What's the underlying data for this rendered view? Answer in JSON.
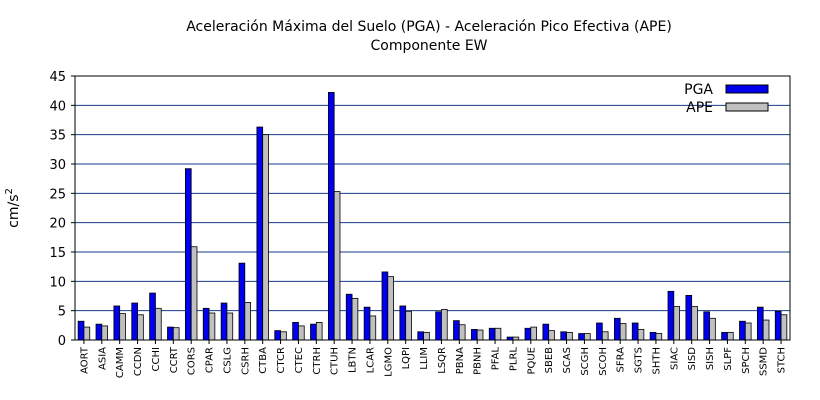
{
  "chart_data": {
    "type": "bar",
    "title": "Aceleración Máxima del Suelo (PGA) -  Aceleración Pico Efectiva (APE)",
    "subtitle": "Componente EW",
    "ylabel_base": "cm/s",
    "ylabel_exp": "2",
    "xlabel": "",
    "ylim": [
      0,
      45
    ],
    "yticks": [
      0,
      5,
      10,
      15,
      20,
      25,
      30,
      35,
      40,
      45
    ],
    "grid": true,
    "legend_position": "top-right",
    "colors": {
      "PGA": "#0000ee",
      "APE": "#c0c0c0",
      "grid": "#1a3a8a"
    },
    "categories": [
      "AORT",
      "ASIA",
      "CAMM",
      "CCDN",
      "CCHI",
      "CCRT",
      "CORS",
      "CPAR",
      "CSLG",
      "CSRH",
      "CTBA",
      "CTCR",
      "CTEC",
      "CTRH",
      "CTUH",
      "LBTN",
      "LCAR",
      "LGMO",
      "LQPI",
      "LLIM",
      "LSQR",
      "PBNA",
      "PBNH",
      "PFAL",
      "PLRL",
      "PQUE",
      "SBEB",
      "SCAS",
      "SCGH",
      "SCOH",
      "SFRA",
      "SGTS",
      "SHTH",
      "SIAC",
      "SISD",
      "SISH",
      "SLPF",
      "SPCH",
      "SSMD",
      "STCH"
    ],
    "series": [
      {
        "name": "PGA",
        "values": [
          3.2,
          2.7,
          5.8,
          6.3,
          8.0,
          2.2,
          29.2,
          5.4,
          6.3,
          13.1,
          36.3,
          1.6,
          3.0,
          2.7,
          42.2,
          7.8,
          5.6,
          11.6,
          5.8,
          1.4,
          4.8,
          3.3,
          1.8,
          2.0,
          0.5,
          2.0,
          2.7,
          1.4,
          1.1,
          2.9,
          3.7,
          2.9,
          1.3,
          8.3,
          7.6,
          4.8,
          1.3,
          3.2,
          5.6,
          4.9
        ]
      },
      {
        "name": "APE",
        "values": [
          2.2,
          2.4,
          4.5,
          4.3,
          5.4,
          2.1,
          15.9,
          4.6,
          4.6,
          6.4,
          35.0,
          1.4,
          2.4,
          3.0,
          25.3,
          7.1,
          4.1,
          10.8,
          4.9,
          1.3,
          5.2,
          2.6,
          1.7,
          2.0,
          0.5,
          2.2,
          1.6,
          1.3,
          1.1,
          1.4,
          2.8,
          1.8,
          1.1,
          5.7,
          5.7,
          3.7,
          1.3,
          2.9,
          3.4,
          4.3
        ]
      }
    ]
  }
}
